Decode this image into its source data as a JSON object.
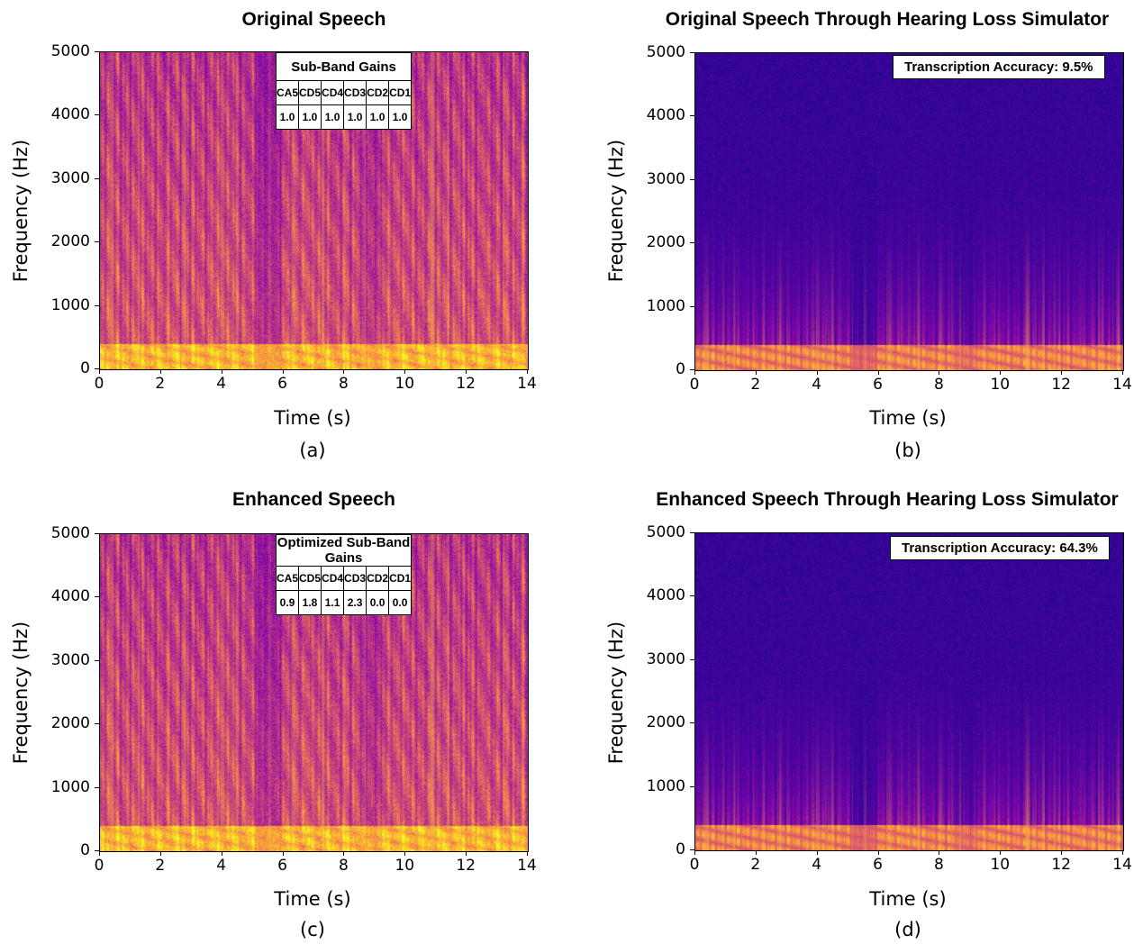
{
  "chart_data": [
    {
      "type": "heatmap",
      "id": "a",
      "title": "Original Speech",
      "xlabel": "Time (s)",
      "ylabel": "Frequency (Hz)",
      "caption": "(a)",
      "xlim": [
        0,
        14
      ],
      "ylim": [
        0,
        5000
      ],
      "xticks": [
        "0",
        "2",
        "4",
        "6",
        "8",
        "10",
        "12",
        "14"
      ],
      "yticks": [
        "0",
        "1000",
        "2000",
        "3000",
        "4000",
        "5000"
      ],
      "colormap": "plasma",
      "intensity": "high",
      "gain_table": {
        "title": "Sub-Band Gains",
        "bands": [
          "CA5",
          "CD5",
          "CD4",
          "CD3",
          "CD2",
          "CD1"
        ],
        "gains": [
          "1.0",
          "1.0",
          "1.0",
          "1.0",
          "1.0",
          "1.0"
        ]
      }
    },
    {
      "type": "heatmap",
      "id": "b",
      "title": "Original Speech Through Hearing Loss Simulator",
      "xlabel": "Time (s)",
      "ylabel": "Frequency (Hz)",
      "caption": "(b)",
      "xlim": [
        0,
        14
      ],
      "ylim": [
        0,
        5000
      ],
      "xticks": [
        "0",
        "2",
        "4",
        "6",
        "8",
        "10",
        "12",
        "14"
      ],
      "yticks": [
        "0",
        "1000",
        "2000",
        "3000",
        "4000",
        "5000"
      ],
      "colormap": "plasma",
      "intensity": "low",
      "annotation": "Transcription Accuracy: 9.5%"
    },
    {
      "type": "heatmap",
      "id": "c",
      "title": "Enhanced Speech",
      "xlabel": "Time (s)",
      "ylabel": "Frequency (Hz)",
      "caption": "(c)",
      "xlim": [
        0,
        14
      ],
      "ylim": [
        0,
        5000
      ],
      "xticks": [
        "0",
        "2",
        "4",
        "6",
        "8",
        "10",
        "12",
        "14"
      ],
      "yticks": [
        "0",
        "1000",
        "2000",
        "3000",
        "4000",
        "5000"
      ],
      "colormap": "plasma",
      "intensity": "high",
      "gain_table": {
        "title": "Optimized Sub-Band Gains",
        "bands": [
          "CA5",
          "CD5",
          "CD4",
          "CD3",
          "CD2",
          "CD1"
        ],
        "gains": [
          "0.9",
          "1.8",
          "1.1",
          "2.3",
          "0.0",
          "0.0"
        ]
      }
    },
    {
      "type": "heatmap",
      "id": "d",
      "title": "Enhanced Speech Through Hearing Loss Simulator",
      "xlabel": "Time (s)",
      "ylabel": "Frequency (Hz)",
      "caption": "(d)",
      "xlim": [
        0,
        14
      ],
      "ylim": [
        0,
        5000
      ],
      "xticks": [
        "0",
        "2",
        "4",
        "6",
        "8",
        "10",
        "12",
        "14"
      ],
      "yticks": [
        "0",
        "1000",
        "2000",
        "3000",
        "4000",
        "5000"
      ],
      "colormap": "plasma",
      "intensity": "low",
      "annotation": "Transcription Accuracy: 64.3%"
    }
  ]
}
